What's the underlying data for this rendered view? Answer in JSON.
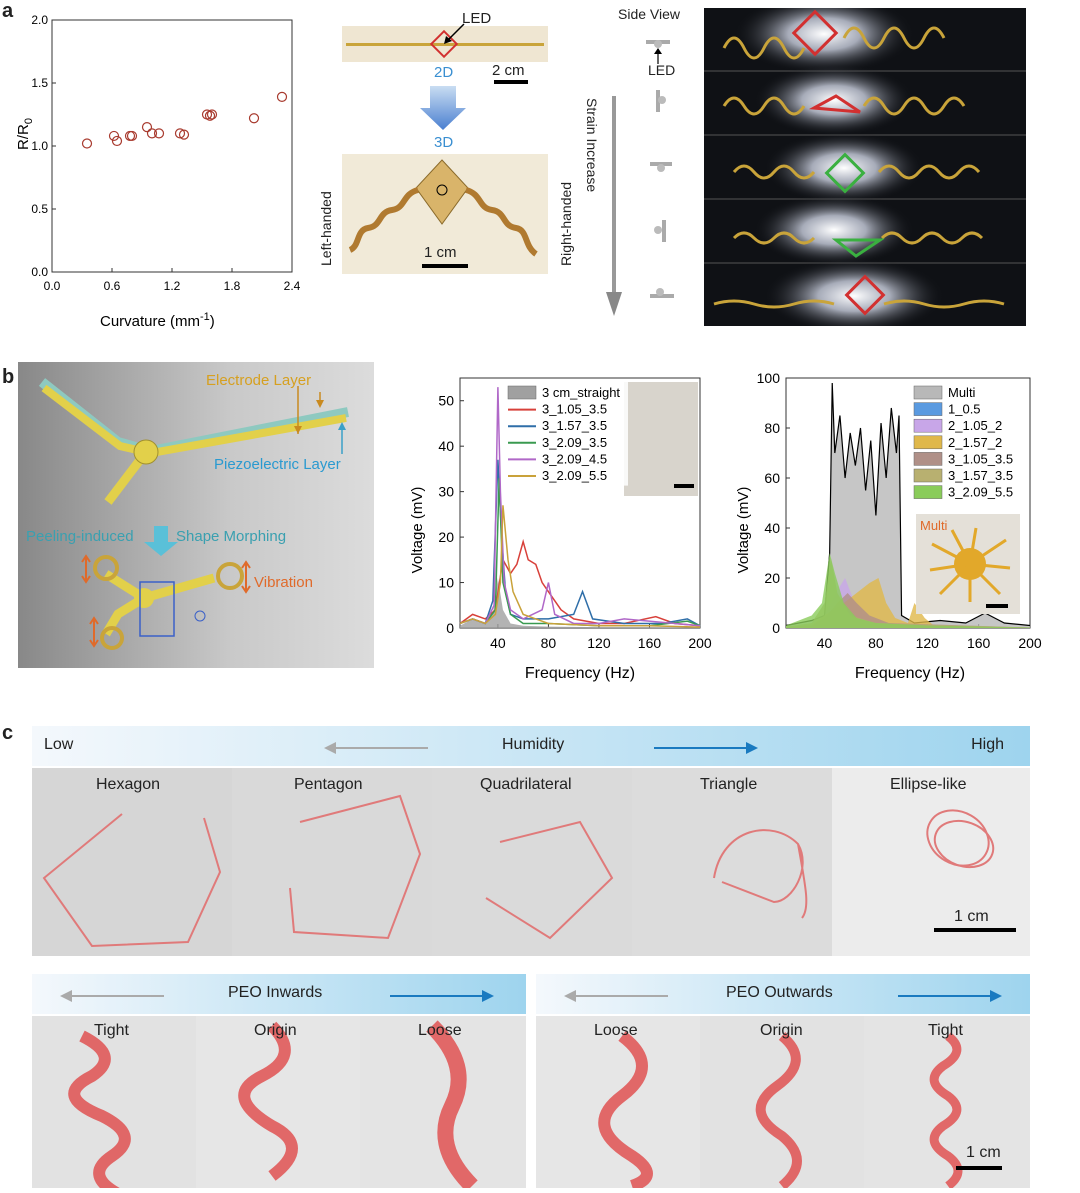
{
  "panels": {
    "a": "a",
    "b": "b",
    "c": "c"
  },
  "panel_a": {
    "scatter": {
      "ylabel_main": "R/R",
      "ylabel_sub": "0",
      "xlabel_main": "Curvature (mm",
      "xlabel_sup": "-1",
      "xlabel_end": ")",
      "xticks": [
        "0.0",
        "0.6",
        "1.2",
        "1.8",
        "2.4"
      ],
      "yticks": [
        "0.0",
        "0.5",
        "1.0",
        "1.5",
        "2.0"
      ]
    },
    "photos": {
      "led_label": "LED",
      "label_2d": "2D",
      "label_3d": "3D",
      "scale_2cm": "2 cm",
      "scale_1cm": "1 cm",
      "left_handed": "Left-handed",
      "right_handed": "Right-handed"
    },
    "side": {
      "side_view": "Side View",
      "led": "LED",
      "strain": "Strain Increase"
    },
    "colors": {
      "marker": "#a83a2e",
      "accent_2d": "#3a8fd1"
    }
  },
  "panel_b": {
    "schematic": {
      "electrode": "Electrode Layer",
      "piezo": "Piezoelectric Layer",
      "peeling": "Peeling-induced",
      "morph": "Shape Morphing",
      "vibration": "Vibration"
    },
    "chart1": {
      "xlabel": "Frequency (Hz)",
      "ylabel": "Voltage (mV)",
      "xticks": [
        "40",
        "80",
        "120",
        "160",
        "200"
      ],
      "yticks": [
        "0",
        "10",
        "20",
        "30",
        "40",
        "50"
      ]
    },
    "chart2": {
      "xlabel": "Frequency (Hz)",
      "ylabel": "Voltage (mV)",
      "xticks": [
        "40",
        "80",
        "120",
        "160",
        "200"
      ],
      "yticks": [
        "0",
        "20",
        "40",
        "60",
        "80",
        "100"
      ],
      "multi_label": "Multi"
    }
  },
  "panel_c": {
    "humidity": {
      "low": "Low",
      "label": "Humidity",
      "high": "High"
    },
    "shapes": [
      "Hexagon",
      "Pentagon",
      "Quadrilateral",
      "Triangle",
      "Ellipse-like"
    ],
    "scale": "1 cm",
    "peo_in": {
      "title": "PEO Inwards",
      "items": [
        "Tight",
        "Origin",
        "Loose"
      ]
    },
    "peo_out": {
      "title": "PEO Outwards",
      "items": [
        "Loose",
        "Origin",
        "Tight"
      ]
    },
    "scale2": "1 cm"
  },
  "chart_data": [
    {
      "type": "scatter",
      "title": "",
      "xlabel": "Curvature (mm-1)",
      "ylabel": "R/R0",
      "xlim": [
        0,
        2.4
      ],
      "ylim": [
        0,
        2.0
      ],
      "x": [
        0.35,
        0.62,
        0.65,
        0.78,
        0.8,
        0.95,
        1.0,
        1.07,
        1.28,
        1.32,
        1.55,
        1.58,
        1.6,
        2.02,
        2.3
      ],
      "y": [
        1.02,
        1.08,
        1.04,
        1.08,
        1.08,
        1.15,
        1.1,
        1.1,
        1.1,
        1.09,
        1.25,
        1.24,
        1.25,
        1.22,
        1.39
      ],
      "marker": "open-circle"
    },
    {
      "type": "line",
      "title": "",
      "xlabel": "Frequency (Hz)",
      "ylabel": "Voltage (mV)",
      "xlim": [
        10,
        200
      ],
      "ylim": [
        0,
        55
      ],
      "series": [
        {
          "name": "3 cm_straight",
          "color": "#a0a0a0",
          "kind": "area",
          "x": [
            10,
            20,
            30,
            36,
            40,
            44,
            50,
            60,
            80,
            120,
            160,
            200
          ],
          "y": [
            0.5,
            2,
            1,
            3,
            11,
            4,
            1,
            0.5,
            0.3,
            0.2,
            0.2,
            0.1
          ]
        },
        {
          "name": "3_1.05_3.5",
          "color": "#d8403a",
          "kind": "line",
          "x": [
            10,
            20,
            30,
            38,
            44,
            50,
            55,
            60,
            64,
            70,
            75,
            80,
            90,
            100,
            120,
            140,
            165,
            180,
            200
          ],
          "y": [
            1,
            3,
            2,
            4,
            15,
            12,
            14,
            19,
            15,
            14,
            10,
            8,
            4,
            2,
            1,
            1,
            2.5,
            1,
            0.5
          ]
        },
        {
          "name": "3_1.57_3.5",
          "color": "#2f6ea8",
          "kind": "line",
          "x": [
            10,
            20,
            30,
            36,
            40,
            43,
            46,
            50,
            60,
            80,
            100,
            107,
            115,
            140,
            170,
            190,
            200
          ],
          "y": [
            1,
            2,
            1,
            6,
            37,
            20,
            8,
            3,
            2,
            2,
            3,
            8,
            2,
            1,
            1,
            2,
            0.5
          ]
        },
        {
          "name": "3_2.09_3.5",
          "color": "#3a9a50",
          "kind": "line",
          "x": [
            10,
            20,
            30,
            38,
            41,
            44,
            50,
            60,
            80,
            120,
            160,
            190,
            200
          ],
          "y": [
            1,
            2,
            1,
            4,
            33,
            10,
            3,
            1,
            1,
            0.5,
            0.5,
            1.5,
            0.5
          ]
        },
        {
          "name": "3_2.09_4.5",
          "color": "#b068c8",
          "kind": "line",
          "x": [
            10,
            20,
            30,
            37,
            40,
            42,
            45,
            50,
            60,
            75,
            80,
            85,
            100,
            120,
            140,
            200
          ],
          "y": [
            1,
            2,
            1,
            5,
            53,
            30,
            10,
            4,
            2,
            4,
            10,
            3,
            1,
            1,
            2,
            0.5
          ]
        },
        {
          "name": "3_2.09_5.5",
          "color": "#c9a23a",
          "kind": "line",
          "x": [
            10,
            20,
            30,
            38,
            42,
            44,
            48,
            52,
            60,
            70,
            80,
            120,
            160,
            200
          ],
          "y": [
            1,
            2,
            1,
            3,
            10,
            27,
            15,
            8,
            3,
            2,
            1,
            0.5,
            0.5,
            0.2
          ]
        }
      ]
    },
    {
      "type": "area",
      "title": "",
      "xlabel": "Frequency (Hz)",
      "ylabel": "Voltage (mV)",
      "xlim": [
        10,
        200
      ],
      "ylim": [
        0,
        100
      ],
      "series": [
        {
          "name": "Multi",
          "color": "#b8b8b8",
          "kind": "area-line",
          "x": [
            10,
            20,
            30,
            40,
            44,
            46,
            48,
            52,
            56,
            60,
            64,
            68,
            72,
            76,
            80,
            84,
            88,
            92,
            96,
            98,
            100,
            110,
            130,
            150,
            165,
            180,
            200
          ],
          "y": [
            1,
            2,
            3,
            5,
            30,
            98,
            70,
            85,
            60,
            78,
            65,
            80,
            55,
            75,
            45,
            82,
            60,
            88,
            70,
            85,
            5,
            2,
            3,
            2,
            6,
            2,
            1
          ]
        },
        {
          "name": "1_0.5",
          "color": "#5a9ae0",
          "kind": "area",
          "x": [
            10,
            30,
            40,
            45,
            50,
            60,
            80,
            120,
            200
          ],
          "y": [
            0.5,
            1,
            3,
            8,
            4,
            2,
            1,
            0.5,
            0.2
          ]
        },
        {
          "name": "2_1.05_2",
          "color": "#c8a6e8",
          "kind": "area",
          "x": [
            10,
            30,
            40,
            50,
            56,
            62,
            70,
            80,
            120,
            200
          ],
          "y": [
            0.5,
            1,
            5,
            15,
            20,
            12,
            6,
            2,
            0.5,
            0.2
          ]
        },
        {
          "name": "2_1.57_2",
          "color": "#e0b84a",
          "kind": "area",
          "x": [
            10,
            30,
            40,
            55,
            65,
            75,
            82,
            88,
            95,
            105,
            110,
            118,
            125,
            200
          ],
          "y": [
            0.5,
            1,
            5,
            10,
            14,
            18,
            20,
            10,
            4,
            2,
            10,
            4,
            1,
            0.2
          ]
        },
        {
          "name": "3_1.05_3.5",
          "color": "#b09088",
          "kind": "area",
          "x": [
            10,
            30,
            40,
            50,
            58,
            65,
            75,
            90,
            200
          ],
          "y": [
            0.5,
            1,
            4,
            10,
            14,
            10,
            5,
            2,
            0.2
          ]
        },
        {
          "name": "3_1.57_3.5",
          "color": "#b8b070",
          "kind": "area",
          "x": [
            10,
            30,
            40,
            45,
            50,
            60,
            80,
            200
          ],
          "y": [
            0.5,
            2,
            10,
            28,
            14,
            5,
            2,
            0.2
          ]
        },
        {
          "name": "3_2.09_5.5",
          "color": "#8acc5a",
          "kind": "area",
          "x": [
            10,
            20,
            30,
            38,
            44,
            48,
            55,
            65,
            80,
            120,
            200
          ],
          "y": [
            1,
            3,
            5,
            10,
            30,
            22,
            10,
            4,
            2,
            1,
            0.2
          ]
        }
      ]
    }
  ]
}
